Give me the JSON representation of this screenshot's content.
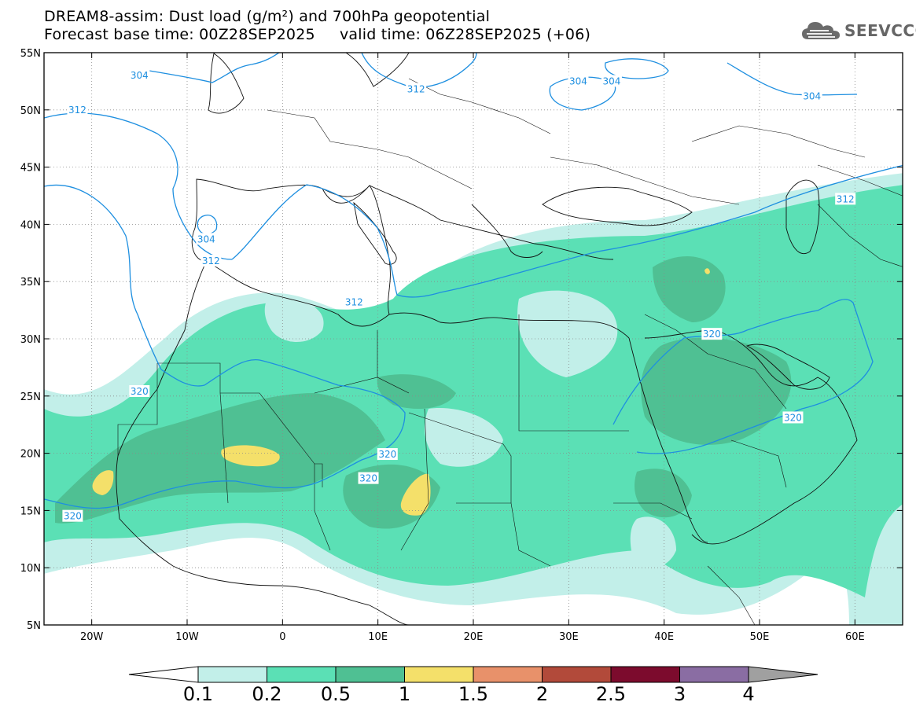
{
  "title": {
    "line1": "DREAM8-assim: Dust load (g/m²) and 700hPa geopotential",
    "line2": "Forecast base time: 00Z28SEP2025     valid time: 06Z28SEP2025 (+06)"
  },
  "logo": {
    "text": "SEEVCCC",
    "icon": "cloud-icon"
  },
  "map": {
    "lon_range": [
      -25,
      65
    ],
    "lat_range": [
      5,
      55
    ],
    "lon_ticks": [
      {
        "value": -20,
        "label": "20W"
      },
      {
        "value": -10,
        "label": "10W"
      },
      {
        "value": 0,
        "label": "0"
      },
      {
        "value": 10,
        "label": "10E"
      },
      {
        "value": 20,
        "label": "20E"
      },
      {
        "value": 30,
        "label": "30E"
      },
      {
        "value": 40,
        "label": "40E"
      },
      {
        "value": 50,
        "label": "50E"
      },
      {
        "value": 60,
        "label": "60E"
      }
    ],
    "lat_ticks": [
      {
        "value": 5,
        "label": "5N"
      },
      {
        "value": 10,
        "label": "10N"
      },
      {
        "value": 15,
        "label": "15N"
      },
      {
        "value": 20,
        "label": "20N"
      },
      {
        "value": 25,
        "label": "25N"
      },
      {
        "value": 30,
        "label": "30N"
      },
      {
        "value": 35,
        "label": "35N"
      },
      {
        "value": 40,
        "label": "40N"
      },
      {
        "value": 45,
        "label": "45N"
      },
      {
        "value": 50,
        "label": "50N"
      },
      {
        "value": 55,
        "label": "55N"
      }
    ],
    "grid": true,
    "contour_color": "#1e8fe0",
    "contour_labels": [
      {
        "text": "304",
        "lon": -15,
        "lat": 53
      },
      {
        "text": "304",
        "lon": 31,
        "lat": 52.5
      },
      {
        "text": "304",
        "lon": 34.5,
        "lat": 52.5
      },
      {
        "text": "304",
        "lon": 55.5,
        "lat": 51.2
      },
      {
        "text": "304",
        "lon": -8,
        "lat": 38.7
      },
      {
        "text": "312",
        "lon": -21.5,
        "lat": 50
      },
      {
        "text": "312",
        "lon": 14,
        "lat": 51.8
      },
      {
        "text": "312",
        "lon": 59,
        "lat": 42.2
      },
      {
        "text": "312",
        "lon": -7.5,
        "lat": 36.8
      },
      {
        "text": "312",
        "lon": 7.5,
        "lat": 33.2
      },
      {
        "text": "320",
        "lon": -15,
        "lat": 25.4
      },
      {
        "text": "320",
        "lon": 45,
        "lat": 30.4
      },
      {
        "text": "320",
        "lon": 11,
        "lat": 19.9
      },
      {
        "text": "320",
        "lon": 9,
        "lat": 17.8
      },
      {
        "text": "320",
        "lon": -22,
        "lat": 14.5
      },
      {
        "text": "320",
        "lon": 53.5,
        "lat": 23.1
      }
    ]
  },
  "colorbar": {
    "colors": [
      "#ffffff",
      "#c2efe9",
      "#5be0b5",
      "#4fc093",
      "#f4e06a",
      "#e8916a",
      "#b24a3a",
      "#7c0b2d",
      "#8a6da3",
      "#a0a0a0"
    ],
    "labels": [
      "0.1",
      "0.2",
      "0.5",
      "1",
      "1.5",
      "2",
      "2.5",
      "3",
      "4"
    ]
  }
}
